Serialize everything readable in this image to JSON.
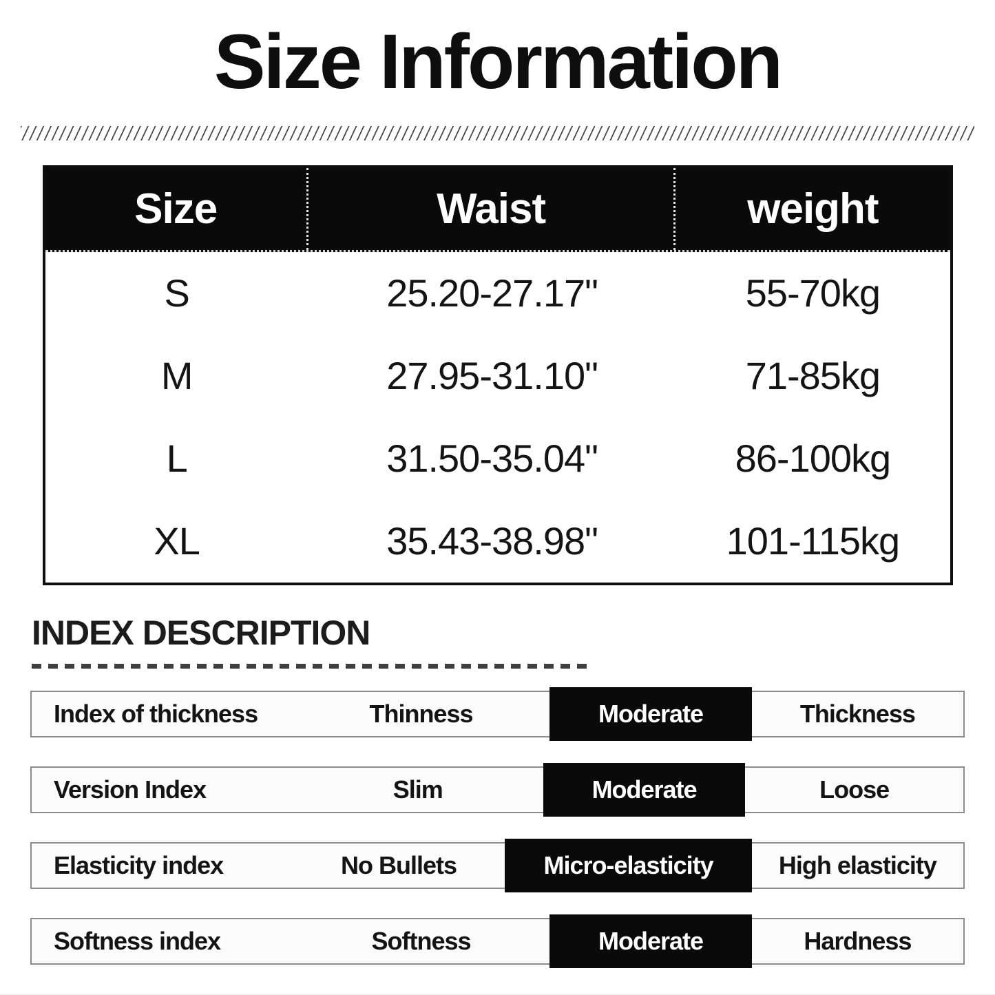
{
  "page": {
    "title": "Size Information"
  },
  "size_table": {
    "columns": [
      "Size",
      "Waist",
      "weight"
    ],
    "rows": [
      {
        "size": "S",
        "waist": "25.20-27.17\"",
        "weight": "55-70kg"
      },
      {
        "size": "M",
        "waist": "27.95-31.10\"",
        "weight": "71-85kg"
      },
      {
        "size": "L",
        "waist": "31.50-35.04\"",
        "weight": "86-100kg"
      },
      {
        "size": "XL",
        "waist": "35.43-38.98\"",
        "weight": "101-115kg"
      }
    ]
  },
  "index_description": {
    "heading": "INDEX DESCRIPTION",
    "bars": [
      {
        "label": "Index of thickness",
        "options": [
          "Thinness",
          "Moderate",
          "Thickness"
        ],
        "selected": "Moderate"
      },
      {
        "label": "Version Index",
        "options": [
          "Slim",
          "Moderate",
          "Loose"
        ],
        "selected": "Moderate"
      },
      {
        "label": "Elasticity index",
        "options": [
          "No Bullets",
          "Micro-elasticity",
          "High elasticity"
        ],
        "selected": "Micro-elasticity"
      },
      {
        "label": "Softness index",
        "options": [
          "Softness",
          "Moderate",
          "Hardness"
        ],
        "selected": "Moderate"
      }
    ]
  },
  "colors": {
    "table_header_bg": "#0a0a0a",
    "table_header_text": "#ffffff",
    "highlight_bg": "#0a0a0a",
    "highlight_text": "#ffffff",
    "bar_border": "#8c8c8c",
    "text": "#141414"
  }
}
